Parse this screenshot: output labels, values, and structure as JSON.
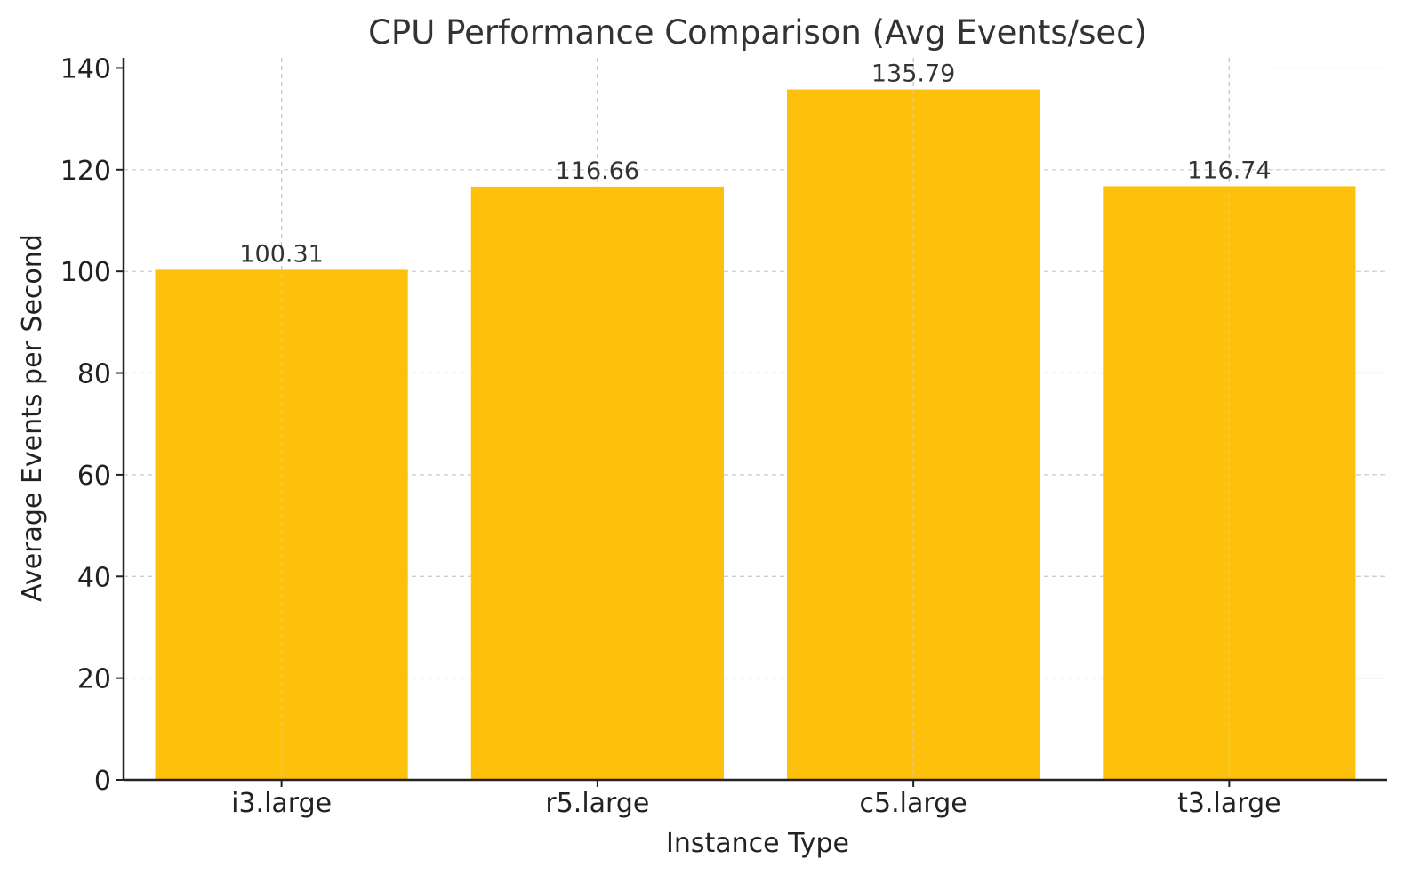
{
  "chart_data": {
    "type": "bar",
    "title": "CPU Performance Comparison (Avg Events/sec)",
    "xlabel": "Instance Type",
    "ylabel": "Average Events per Second",
    "categories": [
      "i3.large",
      "r5.large",
      "c5.large",
      "t3.large"
    ],
    "values": [
      100.31,
      116.66,
      135.79,
      116.74
    ],
    "data_labels": [
      "100.31",
      "116.66",
      "135.79",
      "116.74"
    ],
    "ylim": [
      0,
      142
    ],
    "yticks": [
      0,
      20,
      40,
      60,
      80,
      100,
      120,
      140
    ],
    "grid": true,
    "bar_color": "#fdc00b",
    "legend": "none"
  }
}
